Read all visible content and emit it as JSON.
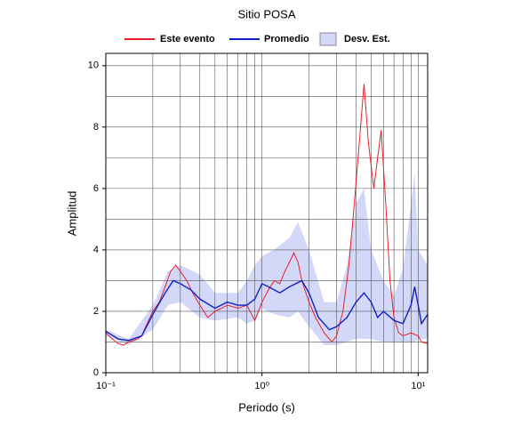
{
  "chart_data": {
    "type": "line",
    "title": "Sitio POSA",
    "xlabel": "Periodo (s)",
    "ylabel": "Amplitud",
    "xscale": "log",
    "grid": true,
    "xlim": [
      0.1,
      11.5
    ],
    "ylim": [
      0,
      10.4
    ],
    "xticks": [
      {
        "value": 0.1,
        "label": "10⁻¹"
      },
      {
        "value": 1,
        "label": "10⁰"
      },
      {
        "value": 10,
        "label": "10¹"
      }
    ],
    "xticks_minor": [
      0.2,
      0.3,
      0.4,
      0.5,
      0.6,
      0.7,
      0.8,
      0.9,
      2,
      3,
      4,
      5,
      6,
      7,
      8,
      9
    ],
    "yticks": [
      0,
      2,
      4,
      6,
      8,
      10
    ],
    "yticks_minor": [
      1,
      3,
      5,
      7,
      9
    ],
    "series": [
      {
        "name": "Este evento",
        "color": "#e8202a",
        "x": [
          0.1,
          0.11,
          0.12,
          0.13,
          0.14,
          0.15,
          0.16,
          0.17,
          0.18,
          0.2,
          0.22,
          0.24,
          0.26,
          0.28,
          0.3,
          0.33,
          0.36,
          0.4,
          0.45,
          0.5,
          0.55,
          0.6,
          0.7,
          0.8,
          0.9,
          1.0,
          1.1,
          1.2,
          1.3,
          1.4,
          1.5,
          1.6,
          1.7,
          1.8,
          2.0,
          2.2,
          2.5,
          2.8,
          3.0,
          3.3,
          3.6,
          3.9,
          4.2,
          4.5,
          4.8,
          5.2,
          5.5,
          5.8,
          6.2,
          6.6,
          7.0,
          7.5,
          8,
          9,
          10,
          10.5,
          11.5
        ],
        "values": [
          1.3,
          1.1,
          0.95,
          0.9,
          1.0,
          1.05,
          1.1,
          1.2,
          1.5,
          2.0,
          2.3,
          2.8,
          3.3,
          3.5,
          3.3,
          3.0,
          2.6,
          2.2,
          1.8,
          2.0,
          2.1,
          2.2,
          2.1,
          2.2,
          1.7,
          2.3,
          2.7,
          3.0,
          2.9,
          3.3,
          3.6,
          3.9,
          3.6,
          3.0,
          2.3,
          1.8,
          1.3,
          1.0,
          1.2,
          2.0,
          3.5,
          5.5,
          7.5,
          9.4,
          7.5,
          6.0,
          7.0,
          7.9,
          5.5,
          3.0,
          1.8,
          1.3,
          1.2,
          1.3,
          1.2,
          1.0,
          0.95
        ]
      },
      {
        "name": "Promedio",
        "color": "#1020c8",
        "x": [
          0.1,
          0.12,
          0.14,
          0.17,
          0.2,
          0.24,
          0.27,
          0.3,
          0.35,
          0.4,
          0.5,
          0.6,
          0.7,
          0.8,
          0.9,
          1.0,
          1.1,
          1.3,
          1.5,
          1.8,
          2.0,
          2.3,
          2.7,
          3.0,
          3.5,
          4.0,
          4.5,
          5.0,
          5.5,
          6,
          7,
          8,
          9,
          9.5,
          10,
          10.5,
          11.5
        ],
        "values": [
          1.35,
          1.1,
          1.05,
          1.2,
          1.9,
          2.6,
          3.0,
          2.9,
          2.7,
          2.4,
          2.1,
          2.3,
          2.2,
          2.2,
          2.4,
          2.9,
          2.8,
          2.6,
          2.8,
          3.0,
          2.6,
          1.8,
          1.4,
          1.5,
          1.8,
          2.3,
          2.6,
          2.3,
          1.8,
          2.0,
          1.7,
          1.6,
          2.2,
          2.8,
          2.2,
          1.6,
          1.9
        ]
      },
      {
        "name": "Desv. Est.",
        "color": "#d4d8f8",
        "x": [
          0.1,
          0.14,
          0.2,
          0.25,
          0.3,
          0.4,
          0.5,
          0.7,
          0.8,
          0.9,
          1.0,
          1.2,
          1.5,
          1.7,
          2.0,
          2.5,
          3.0,
          3.5,
          4.0,
          4.5,
          5.0,
          6.0,
          7.0,
          8.0,
          9.0,
          9.5,
          10,
          11.5
        ],
        "upper": [
          1.4,
          1.1,
          2.2,
          3.3,
          3.5,
          3.2,
          2.6,
          2.6,
          3.0,
          3.5,
          3.8,
          4.0,
          4.4,
          4.9,
          4.0,
          2.3,
          2.3,
          3.5,
          5.5,
          6.0,
          4.0,
          3.0,
          2.5,
          3.4,
          5.5,
          6.5,
          4.0,
          3.5
        ],
        "lower": [
          1.2,
          0.9,
          1.4,
          2.2,
          2.3,
          1.8,
          1.7,
          1.8,
          1.6,
          1.7,
          2.1,
          1.9,
          1.8,
          2.0,
          1.5,
          0.9,
          0.9,
          1.0,
          1.1,
          1.1,
          1.1,
          1.0,
          1.0,
          1.0,
          1.0,
          1.0,
          1.1,
          1.1
        ]
      }
    ]
  }
}
